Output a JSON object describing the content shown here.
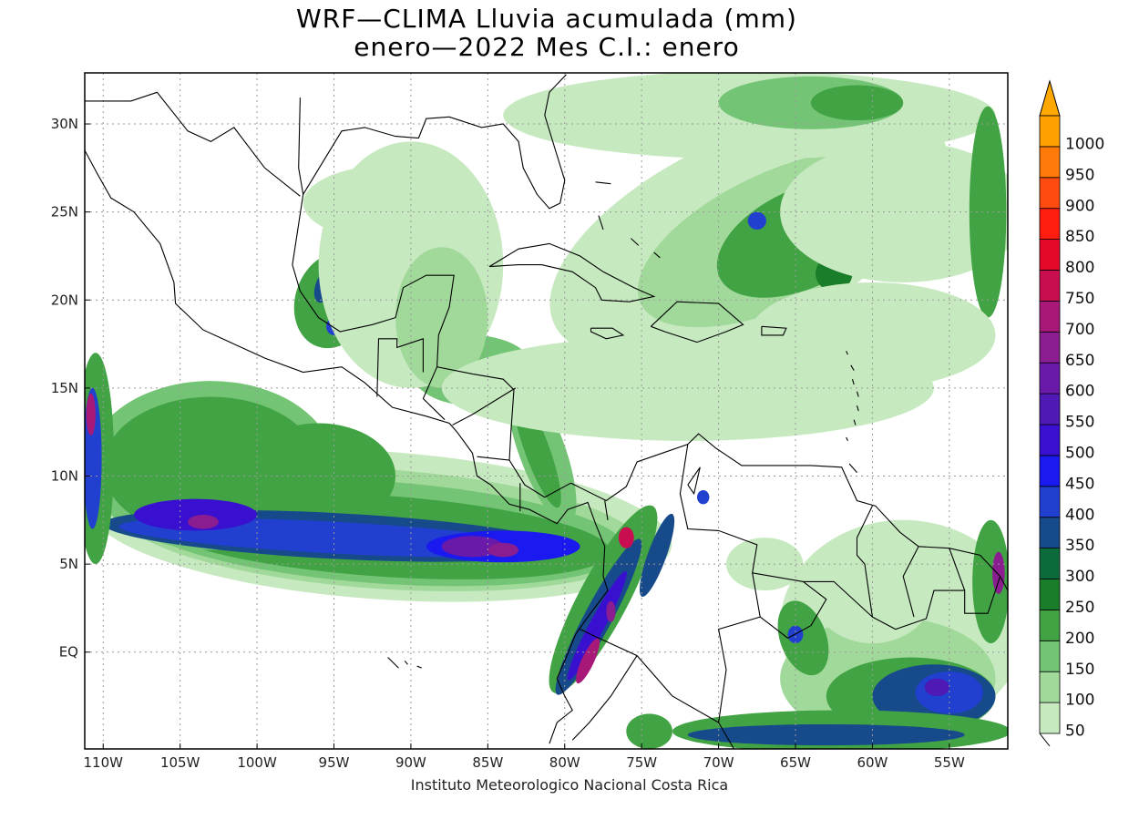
{
  "title_line1": "WRF—CLIMA Lluvia acumulada (mm)",
  "title_line2": "enero—2022 Mes C.I.: enero",
  "footer": "Instituto Meteorologico Nacional Costa Rica",
  "lat_labels": [
    "30N",
    "25N",
    "20N",
    "15N",
    "10N",
    "5N",
    "EQ"
  ],
  "lat_values": [
    30,
    25,
    20,
    15,
    10,
    5,
    0
  ],
  "lon_labels": [
    "110W",
    "105W",
    "100W",
    "95W",
    "90W",
    "85W",
    "80W",
    "75W",
    "70W",
    "65W",
    "60W",
    "55W"
  ],
  "lon_values": [
    -110,
    -105,
    -100,
    -95,
    -90,
    -85,
    -80,
    -75,
    -70,
    -65,
    -60,
    -55
  ],
  "legend": {
    "labels": [
      "50",
      "100",
      "150",
      "200",
      "250",
      "300",
      "350",
      "400",
      "450",
      "500",
      "550",
      "600",
      "650",
      "700",
      "750",
      "800",
      "850",
      "900",
      "950",
      "1000"
    ],
    "colors": [
      "#c7e9c0",
      "#a1d99b",
      "#74c476",
      "#41a343",
      "#1a7d2a",
      "#0b6b3a",
      "#174a8a",
      "#2140d0",
      "#1a1af0",
      "#3a10d0",
      "#4e19b5",
      "#6a1aa8",
      "#8a1e90",
      "#a81878",
      "#c80e50",
      "#e5082a",
      "#ff1d10",
      "#ff4a10",
      "#ff7a08",
      "#ffa000"
    ],
    "overflow_color": "#ffa800"
  },
  "rain_levels": [
    50,
    100,
    150,
    200,
    250,
    300,
    350,
    400,
    450,
    500,
    550,
    600,
    650,
    700,
    750,
    800
  ]
}
